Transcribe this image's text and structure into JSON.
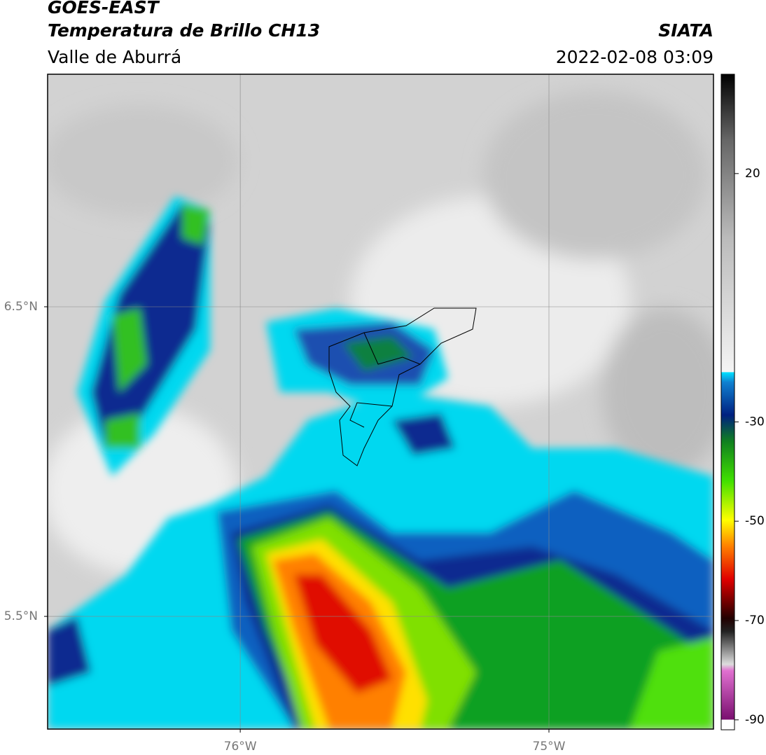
{
  "header": {
    "title": "GOES-EAST",
    "subtitle": "Temperatura de Brillo CH13",
    "region": "Valle de Aburrá",
    "source": "SIATA",
    "datetime": "2022-02-08 03:09"
  },
  "map": {
    "lonlim": [
      -76.624,
      -74.467
    ],
    "latlim": [
      5.136,
      7.251
    ],
    "lonticks": [
      {
        "value": -76,
        "label": "76°W"
      },
      {
        "value": -75,
        "label": "75°W"
      }
    ],
    "latticks": [
      {
        "value": 6.5,
        "label": "6.5°N"
      },
      {
        "value": 5.5,
        "label": "5.5°N"
      }
    ],
    "grid": true
  },
  "colorbar": {
    "clim": [
      -92,
      40
    ],
    "ticks": [
      20,
      -30,
      -50,
      -70,
      -90
    ]
  }
}
